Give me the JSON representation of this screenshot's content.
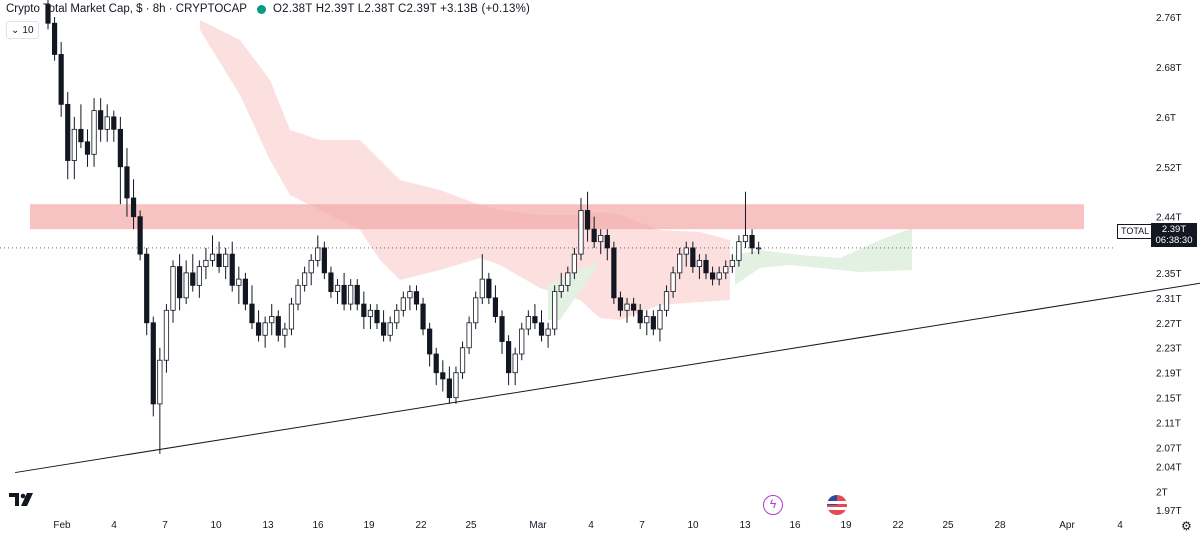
{
  "header": {
    "title": "Crypto Total Market Cap, $ · 8h · CRYPTOCAP",
    "ohlc": "O2.38T H2.39T L2.38T C2.39T +3.13B (+0.13%)",
    "interval_value": "10",
    "symbol_badge": "TOTAL",
    "current_price": "2.39T",
    "countdown": "06:38:30"
  },
  "colors": {
    "up": "#131722",
    "down": "#131722",
    "resistance": "#f4a8a8",
    "cloud_bear": "#fcdcdc",
    "cloud_bull": "#e3f1e3",
    "trendline": "#131722"
  },
  "icons": [
    "tradingview-logo",
    "lightning-icon",
    "us-flag-icon",
    "settings-icon"
  ],
  "chart_data": {
    "type": "candlestick",
    "title": "Crypto Total Market Cap, $ · 8h · CRYPTOCAP",
    "y_axis_unit": "T",
    "y_ticks": [
      2.76,
      2.68,
      2.6,
      2.52,
      2.44,
      2.35,
      2.31,
      2.27,
      2.23,
      2.19,
      2.15,
      2.11,
      2.07,
      2.04,
      2.0,
      1.97
    ],
    "y_tick_labels": [
      "2.76T",
      "2.68T",
      "2.6T",
      "2.52T",
      "2.44T",
      "2.35T",
      "2.31T",
      "2.27T",
      "2.23T",
      "2.19T",
      "2.15T",
      "2.11T",
      "2.07T",
      "2.04T",
      "2T",
      "1.97T"
    ],
    "x_ticks": [
      "Feb",
      "4",
      "7",
      "10",
      "13",
      "16",
      "19",
      "22",
      "25",
      "Mar",
      "4",
      "7",
      "10",
      "13",
      "16",
      "19",
      "22",
      "25",
      "28",
      "Apr",
      "4"
    ],
    "resistance_zone": [
      2.42,
      2.46
    ],
    "trendline": {
      "from": {
        "bar": -5,
        "value": 2.03
      },
      "to": {
        "bar": 185,
        "value": 2.35
      }
    },
    "candles": [
      [
        2.78,
        2.79,
        2.74,
        2.75
      ],
      [
        2.75,
        2.76,
        2.69,
        2.7
      ],
      [
        2.7,
        2.72,
        2.6,
        2.62
      ],
      [
        2.62,
        2.64,
        2.5,
        2.53
      ],
      [
        2.53,
        2.6,
        2.5,
        2.58
      ],
      [
        2.58,
        2.62,
        2.55,
        2.56
      ],
      [
        2.56,
        2.58,
        2.52,
        2.54
      ],
      [
        2.54,
        2.63,
        2.52,
        2.61
      ],
      [
        2.61,
        2.63,
        2.56,
        2.58
      ],
      [
        2.58,
        2.62,
        2.56,
        2.6
      ],
      [
        2.6,
        2.61,
        2.56,
        2.58
      ],
      [
        2.58,
        2.6,
        2.46,
        2.52
      ],
      [
        2.52,
        2.55,
        2.44,
        2.47
      ],
      [
        2.47,
        2.5,
        2.42,
        2.44
      ],
      [
        2.44,
        2.45,
        2.37,
        2.38
      ],
      [
        2.38,
        2.39,
        2.25,
        2.27
      ],
      [
        2.27,
        2.28,
        2.12,
        2.14
      ],
      [
        2.14,
        2.23,
        2.06,
        2.21
      ],
      [
        2.21,
        2.3,
        2.19,
        2.29
      ],
      [
        2.29,
        2.37,
        2.27,
        2.36
      ],
      [
        2.36,
        2.38,
        2.29,
        2.31
      ],
      [
        2.31,
        2.37,
        2.3,
        2.35
      ],
      [
        2.35,
        2.38,
        2.32,
        2.33
      ],
      [
        2.33,
        2.37,
        2.31,
        2.36
      ],
      [
        2.36,
        2.39,
        2.34,
        2.37
      ],
      [
        2.37,
        2.41,
        2.36,
        2.38
      ],
      [
        2.38,
        2.4,
        2.35,
        2.36
      ],
      [
        2.36,
        2.39,
        2.34,
        2.38
      ],
      [
        2.38,
        2.4,
        2.32,
        2.33
      ],
      [
        2.33,
        2.36,
        2.3,
        2.34
      ],
      [
        2.34,
        2.35,
        2.29,
        2.3
      ],
      [
        2.3,
        2.33,
        2.26,
        2.27
      ],
      [
        2.27,
        2.29,
        2.24,
        2.25
      ],
      [
        2.25,
        2.28,
        2.23,
        2.27
      ],
      [
        2.27,
        2.3,
        2.25,
        2.28
      ],
      [
        2.28,
        2.29,
        2.24,
        2.25
      ],
      [
        2.25,
        2.27,
        2.23,
        2.26
      ],
      [
        2.26,
        2.31,
        2.25,
        2.3
      ],
      [
        2.3,
        2.34,
        2.29,
        2.33
      ],
      [
        2.33,
        2.36,
        2.32,
        2.35
      ],
      [
        2.35,
        2.38,
        2.33,
        2.37
      ],
      [
        2.37,
        2.41,
        2.36,
        2.39
      ],
      [
        2.39,
        2.4,
        2.34,
        2.35
      ],
      [
        2.35,
        2.36,
        2.31,
        2.32
      ],
      [
        2.32,
        2.34,
        2.3,
        2.33
      ],
      [
        2.33,
        2.35,
        2.29,
        2.3
      ],
      [
        2.3,
        2.34,
        2.29,
        2.33
      ],
      [
        2.33,
        2.34,
        2.29,
        2.3
      ],
      [
        2.3,
        2.32,
        2.26,
        2.28
      ],
      [
        2.28,
        2.3,
        2.26,
        2.29
      ],
      [
        2.29,
        2.3,
        2.26,
        2.27
      ],
      [
        2.27,
        2.29,
        2.24,
        2.25
      ],
      [
        2.25,
        2.28,
        2.24,
        2.27
      ],
      [
        2.27,
        2.3,
        2.26,
        2.29
      ],
      [
        2.29,
        2.32,
        2.28,
        2.31
      ],
      [
        2.31,
        2.33,
        2.29,
        2.32
      ],
      [
        2.32,
        2.33,
        2.29,
        2.3
      ],
      [
        2.3,
        2.31,
        2.25,
        2.26
      ],
      [
        2.26,
        2.27,
        2.2,
        2.22
      ],
      [
        2.22,
        2.23,
        2.17,
        2.19
      ],
      [
        2.19,
        2.21,
        2.16,
        2.18
      ],
      [
        2.18,
        2.2,
        2.14,
        2.15
      ],
      [
        2.15,
        2.2,
        2.14,
        2.19
      ],
      [
        2.19,
        2.24,
        2.18,
        2.23
      ],
      [
        2.23,
        2.28,
        2.22,
        2.27
      ],
      [
        2.27,
        2.32,
        2.26,
        2.31
      ],
      [
        2.31,
        2.38,
        2.3,
        2.34
      ],
      [
        2.34,
        2.35,
        2.3,
        2.31
      ],
      [
        2.31,
        2.33,
        2.27,
        2.28
      ],
      [
        2.28,
        2.29,
        2.22,
        2.24
      ],
      [
        2.24,
        2.25,
        2.17,
        2.19
      ],
      [
        2.19,
        2.23,
        2.17,
        2.22
      ],
      [
        2.22,
        2.27,
        2.21,
        2.26
      ],
      [
        2.26,
        2.29,
        2.25,
        2.28
      ],
      [
        2.28,
        2.3,
        2.26,
        2.27
      ],
      [
        2.27,
        2.29,
        2.24,
        2.25
      ],
      [
        2.25,
        2.27,
        2.23,
        2.26
      ],
      [
        2.26,
        2.33,
        2.25,
        2.32
      ],
      [
        2.32,
        2.35,
        2.31,
        2.33
      ],
      [
        2.33,
        2.36,
        2.32,
        2.35
      ],
      [
        2.35,
        2.39,
        2.34,
        2.38
      ],
      [
        2.38,
        2.47,
        2.37,
        2.45
      ],
      [
        2.45,
        2.48,
        2.4,
        2.42
      ],
      [
        2.42,
        2.44,
        2.39,
        2.4
      ],
      [
        2.4,
        2.42,
        2.38,
        2.41
      ],
      [
        2.41,
        2.42,
        2.37,
        2.39
      ],
      [
        2.39,
        2.4,
        2.3,
        2.31
      ],
      [
        2.31,
        2.32,
        2.28,
        2.29
      ],
      [
        2.29,
        2.31,
        2.27,
        2.3
      ],
      [
        2.3,
        2.31,
        2.28,
        2.29
      ],
      [
        2.29,
        2.3,
        2.26,
        2.27
      ],
      [
        2.27,
        2.29,
        2.25,
        2.28
      ],
      [
        2.28,
        2.29,
        2.25,
        2.26
      ],
      [
        2.26,
        2.3,
        2.24,
        2.29
      ],
      [
        2.29,
        2.33,
        2.28,
        2.32
      ],
      [
        2.32,
        2.36,
        2.31,
        2.35
      ],
      [
        2.35,
        2.39,
        2.34,
        2.38
      ],
      [
        2.38,
        2.4,
        2.36,
        2.39
      ],
      [
        2.39,
        2.4,
        2.35,
        2.36
      ],
      [
        2.36,
        2.38,
        2.34,
        2.37
      ],
      [
        2.37,
        2.38,
        2.34,
        2.35
      ],
      [
        2.35,
        2.36,
        2.33,
        2.34
      ],
      [
        2.34,
        2.36,
        2.33,
        2.35
      ],
      [
        2.35,
        2.37,
        2.34,
        2.36
      ],
      [
        2.36,
        2.38,
        2.35,
        2.37
      ],
      [
        2.37,
        2.41,
        2.36,
        2.4
      ],
      [
        2.4,
        2.48,
        2.39,
        2.41
      ],
      [
        2.41,
        2.42,
        2.38,
        2.39
      ],
      [
        2.39,
        2.4,
        2.38,
        2.39
      ]
    ]
  }
}
